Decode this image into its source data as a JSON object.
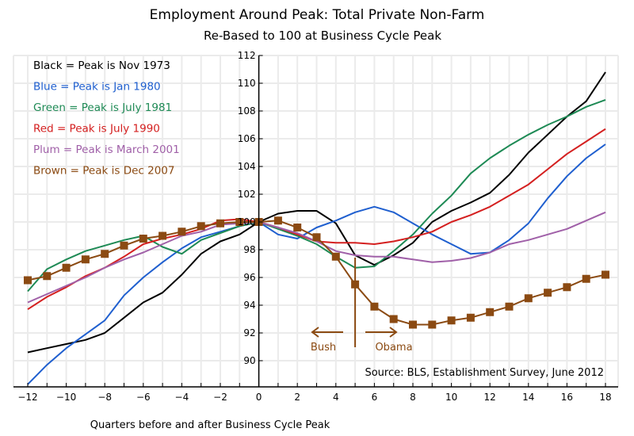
{
  "chart_data": {
    "type": "line",
    "title": "Employment Around Peak:  Total Private Non-Farm",
    "subtitle": "Re-Based to 100 at Business Cycle Peak",
    "xlabel": "Quarters before and after Business Cycle Peak",
    "ylabel": "",
    "xlim": [
      -12,
      18
    ],
    "ylim": [
      88,
      112
    ],
    "x_ticks": [
      -12,
      -10,
      -8,
      -6,
      -4,
      -2,
      0,
      2,
      4,
      6,
      8,
      10,
      12,
      14,
      16,
      18
    ],
    "y_ticks": [
      90,
      92,
      94,
      96,
      98,
      100,
      102,
      104,
      106,
      108,
      110,
      112
    ],
    "grid": true,
    "legend_position": "top-left",
    "x": [
      -12,
      -11,
      -10,
      -9,
      -8,
      -7,
      -6,
      -5,
      -4,
      -3,
      -2,
      -1,
      0,
      1,
      2,
      3,
      4,
      5,
      6,
      7,
      8,
      9,
      10,
      11,
      12,
      13,
      14,
      15,
      16,
      17,
      18
    ],
    "series": [
      {
        "name": "Black = Peak is Nov 1973",
        "color": "#000000",
        "markers": false,
        "values": [
          90.6,
          90.9,
          91.2,
          91.5,
          92.0,
          93.1,
          94.2,
          94.9,
          96.2,
          97.7,
          98.6,
          99.1,
          100,
          100.6,
          100.8,
          100.8,
          99.9,
          97.6,
          96.9,
          97.6,
          98.5,
          100.0,
          100.8,
          101.4,
          102.1,
          103.4,
          105.0,
          106.3,
          107.6,
          108.7,
          110.8
        ]
      },
      {
        "name": "Blue = Peak is Jan 1980",
        "color": "#1f5fcf",
        "markers": false,
        "values": [
          88.3,
          89.7,
          90.9,
          91.9,
          92.9,
          94.7,
          96.0,
          97.1,
          98.1,
          98.9,
          99.3,
          99.7,
          100,
          99.1,
          98.8,
          99.6,
          100.1,
          100.7,
          101.1,
          100.7,
          99.9,
          99.1,
          98.4,
          97.7,
          97.8,
          98.7,
          99.9,
          101.7,
          103.3,
          104.6,
          105.6
        ]
      },
      {
        "name": "Green = Peak is July 1981",
        "color": "#1e8a55",
        "markers": false,
        "values": [
          95.0,
          96.6,
          97.3,
          97.9,
          98.3,
          98.7,
          99.0,
          98.2,
          97.7,
          98.7,
          99.2,
          99.7,
          100,
          99.5,
          99.0,
          98.4,
          97.5,
          96.7,
          96.8,
          97.9,
          99.1,
          100.6,
          101.9,
          103.5,
          104.6,
          105.5,
          106.3,
          107.0,
          107.6,
          108.3,
          108.8
        ]
      },
      {
        "name": "Red = Peak is July 1990",
        "color": "#d42020",
        "markers": false,
        "values": [
          93.7,
          94.6,
          95.3,
          96.1,
          96.7,
          97.5,
          98.4,
          98.8,
          99.1,
          99.5,
          100.1,
          100.2,
          100,
          99.6,
          99.1,
          98.6,
          98.5,
          98.5,
          98.4,
          98.6,
          98.9,
          99.3,
          100.0,
          100.5,
          101.1,
          101.9,
          102.7,
          103.8,
          104.9,
          105.8,
          106.7
        ]
      },
      {
        "name": "Plum = Peak is March 2001",
        "color": "#a060a8",
        "markers": false,
        "values": [
          94.2,
          94.8,
          95.4,
          96.0,
          96.7,
          97.3,
          97.8,
          98.4,
          99.0,
          99.3,
          99.8,
          99.9,
          100,
          99.6,
          99.2,
          98.6,
          97.9,
          97.6,
          97.5,
          97.5,
          97.3,
          97.1,
          97.2,
          97.4,
          97.8,
          98.4,
          98.7,
          99.1,
          99.5,
          100.1,
          100.7
        ]
      },
      {
        "name": "Brown = Peak is Dec 2007",
        "color": "#8b4a12",
        "markers": true,
        "values": [
          95.8,
          96.1,
          96.7,
          97.3,
          97.7,
          98.3,
          98.8,
          99.0,
          99.3,
          99.7,
          99.9,
          100.0,
          100,
          100.1,
          99.6,
          98.9,
          97.5,
          95.5,
          93.9,
          93.0,
          92.6,
          92.6,
          92.9,
          93.1,
          93.5,
          93.9,
          94.5,
          94.9,
          95.3,
          95.9,
          96.2
        ]
      }
    ],
    "annotations": {
      "divider_x": 5,
      "left_label": "Bush",
      "right_label": "Obama",
      "source": "Source: BLS, Establishment Survey, June 2012"
    }
  }
}
